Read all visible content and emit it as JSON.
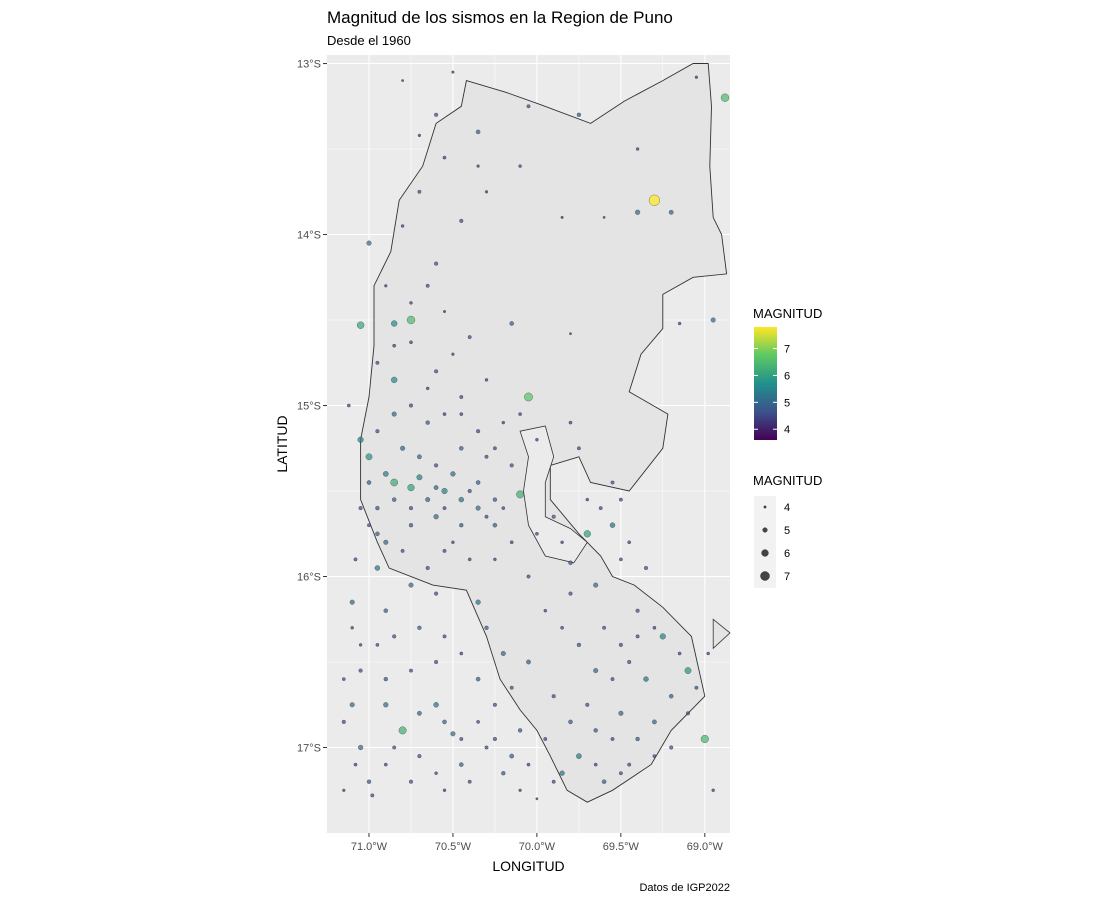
{
  "chart_data": {
    "type": "scatter",
    "title": "Magnitud de los sismos en la Region de Puno",
    "subtitle": "Desde el 1960",
    "xlabel": "LONGITUD",
    "ylabel": "LATITUD",
    "caption": "Datos de IGP2022",
    "xlim": [
      -71.25,
      -68.85
    ],
    "ylim": [
      -17.5,
      -12.95
    ],
    "x_ticks": [
      {
        "value": -71.0,
        "label": "71.0°W"
      },
      {
        "value": -70.5,
        "label": "70.5°W"
      },
      {
        "value": -70.0,
        "label": "70.0°W"
      },
      {
        "value": -69.5,
        "label": "69.5°W"
      },
      {
        "value": -69.0,
        "label": "69.0°W"
      }
    ],
    "y_ticks": [
      {
        "value": -13,
        "label": "13°S"
      },
      {
        "value": -14,
        "label": "14°S"
      },
      {
        "value": -15,
        "label": "15°S"
      },
      {
        "value": -16,
        "label": "16°S"
      },
      {
        "value": -17,
        "label": "17°S"
      }
    ],
    "grid": true,
    "legend_position": "right",
    "legends": [
      {
        "title": "MAGNITUD",
        "kind": "colorbar",
        "min": 3.6,
        "max": 7.8,
        "ticks": [
          "4",
          "5",
          "6",
          "7"
        ],
        "tick_values": [
          4,
          5,
          6,
          7
        ]
      },
      {
        "title": "MAGNITUD",
        "kind": "size",
        "entries": [
          "4",
          "5",
          "6",
          "7"
        ],
        "entry_values": [
          4,
          5,
          6,
          7
        ]
      }
    ],
    "colors": {
      "panel": "#ebebeb",
      "grid": "#ffffff",
      "region_fill": "#e4e4e4",
      "region_stroke": "#333333",
      "viridis": [
        "#440154",
        "#3b528b",
        "#21908c",
        "#5dc863",
        "#fde725"
      ]
    },
    "region_outline": [
      [
        -70.42,
        -13.1
      ],
      [
        -70.18,
        -13.17
      ],
      [
        -69.98,
        -13.24
      ],
      [
        -69.68,
        -13.35
      ],
      [
        -69.48,
        -13.22
      ],
      [
        -69.25,
        -13.1
      ],
      [
        -69.07,
        -13.0
      ],
      [
        -68.98,
        -13.0
      ],
      [
        -68.96,
        -13.25
      ],
      [
        -68.97,
        -13.6
      ],
      [
        -68.95,
        -13.9
      ],
      [
        -68.9,
        -14.0
      ],
      [
        -68.87,
        -14.23
      ],
      [
        -69.07,
        -14.25
      ],
      [
        -69.25,
        -14.35
      ],
      [
        -69.25,
        -14.55
      ],
      [
        -69.38,
        -14.7
      ],
      [
        -69.45,
        -14.92
      ],
      [
        -69.22,
        -15.05
      ],
      [
        -69.25,
        -15.25
      ],
      [
        -69.45,
        -15.5
      ],
      [
        -69.68,
        -15.45
      ],
      [
        -69.75,
        -15.3
      ],
      [
        -69.92,
        -15.35
      ],
      [
        -69.92,
        -15.55
      ],
      [
        -69.75,
        -15.75
      ],
      [
        -69.62,
        -15.88
      ],
      [
        -69.55,
        -16.0
      ],
      [
        -69.42,
        -16.05
      ],
      [
        -69.25,
        -16.18
      ],
      [
        -69.08,
        -16.35
      ],
      [
        -69.0,
        -16.7
      ],
      [
        -69.2,
        -16.9
      ],
      [
        -69.32,
        -17.1
      ],
      [
        -69.55,
        -17.25
      ],
      [
        -69.7,
        -17.32
      ],
      [
        -69.82,
        -17.25
      ],
      [
        -69.92,
        -17.05
      ],
      [
        -70.0,
        -16.9
      ],
      [
        -70.1,
        -16.78
      ],
      [
        -70.22,
        -16.6
      ],
      [
        -70.3,
        -16.35
      ],
      [
        -70.42,
        -16.08
      ],
      [
        -70.62,
        -16.05
      ],
      [
        -70.88,
        -15.95
      ],
      [
        -70.95,
        -15.8
      ],
      [
        -71.05,
        -15.55
      ],
      [
        -71.05,
        -15.2
      ],
      [
        -71.0,
        -14.95
      ],
      [
        -70.97,
        -14.65
      ],
      [
        -70.97,
        -14.3
      ],
      [
        -70.87,
        -14.1
      ],
      [
        -70.82,
        -13.8
      ],
      [
        -70.68,
        -13.6
      ],
      [
        -70.6,
        -13.35
      ],
      [
        -70.45,
        -13.25
      ],
      [
        -70.42,
        -13.1
      ]
    ],
    "lake_inlet": [
      [
        -70.1,
        -15.15
      ],
      [
        -69.95,
        -15.12
      ],
      [
        -69.9,
        -15.3
      ],
      [
        -69.95,
        -15.45
      ],
      [
        -69.95,
        -15.65
      ],
      [
        -69.8,
        -15.72
      ],
      [
        -69.7,
        -15.8
      ],
      [
        -69.78,
        -15.92
      ],
      [
        -69.95,
        -15.88
      ],
      [
        -70.05,
        -15.7
      ],
      [
        -70.08,
        -15.5
      ],
      [
        -70.05,
        -15.3
      ],
      [
        -70.1,
        -15.15
      ]
    ],
    "triangle": [
      [
        -68.95,
        -16.25
      ],
      [
        -68.95,
        -16.42
      ],
      [
        -68.85,
        -16.33
      ],
      [
        -68.95,
        -16.25
      ]
    ],
    "points": [
      [
        -70.6,
        -13.3,
        4.6
      ],
      [
        -70.7,
        -13.42,
        4.2
      ],
      [
        -70.35,
        -13.4,
        4.8
      ],
      [
        -70.05,
        -13.25,
        4.5
      ],
      [
        -69.75,
        -13.3,
        4.7
      ],
      [
        -69.4,
        -13.5,
        4.3
      ],
      [
        -70.8,
        -13.1,
        4.0
      ],
      [
        -70.5,
        -13.05,
        4.1
      ],
      [
        -69.05,
        -13.08,
        4.2
      ],
      [
        -68.88,
        -13.2,
        6.5
      ],
      [
        -69.3,
        -13.8,
        7.8
      ],
      [
        -69.4,
        -13.87,
        5.1
      ],
      [
        -69.2,
        -13.87,
        4.9
      ],
      [
        -70.45,
        -13.92,
        4.6
      ],
      [
        -70.3,
        -13.75,
        4.2
      ],
      [
        -69.85,
        -13.9,
        4.1
      ],
      [
        -69.6,
        -13.9,
        4.0
      ],
      [
        -70.1,
        -13.6,
        4.3
      ],
      [
        -71.0,
        -14.05,
        5.0
      ],
      [
        -70.6,
        -14.17,
        4.6
      ],
      [
        -70.75,
        -14.5,
        6.5
      ],
      [
        -70.85,
        -14.52,
        5.6
      ],
      [
        -70.65,
        -14.3,
        4.5
      ],
      [
        -71.05,
        -14.53,
        6.1
      ],
      [
        -70.4,
        -14.6,
        4.5
      ],
      [
        -70.15,
        -14.52,
        4.8
      ],
      [
        -69.8,
        -14.58,
        4.0
      ],
      [
        -69.15,
        -14.52,
        4.3
      ],
      [
        -68.95,
        -14.5,
        5.0
      ],
      [
        -70.05,
        -14.95,
        6.7
      ],
      [
        -70.3,
        -14.85,
        4.3
      ],
      [
        -70.6,
        -14.8,
        4.6
      ],
      [
        -70.85,
        -14.85,
        5.6
      ],
      [
        -70.75,
        -14.63,
        4.4
      ],
      [
        -70.5,
        -14.7,
        4.2
      ],
      [
        -71.05,
        -15.2,
        5.5
      ],
      [
        -71.0,
        -15.3,
        5.8
      ],
      [
        -70.95,
        -15.15,
        4.6
      ],
      [
        -70.85,
        -15.45,
        6.2
      ],
      [
        -70.75,
        -15.48,
        6.0
      ],
      [
        -70.55,
        -15.5,
        5.5
      ],
      [
        -70.45,
        -15.55,
        5.2
      ],
      [
        -70.35,
        -15.6,
        5.0
      ],
      [
        -70.25,
        -15.7,
        4.8
      ],
      [
        -70.1,
        -15.52,
        6.3
      ],
      [
        -70.6,
        -15.65,
        5.1
      ],
      [
        -70.75,
        -15.7,
        4.7
      ],
      [
        -70.9,
        -15.8,
        5.0
      ],
      [
        -70.95,
        -15.95,
        5.2
      ],
      [
        -70.3,
        -15.3,
        4.5
      ],
      [
        -70.45,
        -15.25,
        4.8
      ],
      [
        -70.65,
        -15.1,
        4.7
      ],
      [
        -70.85,
        -15.05,
        5.0
      ],
      [
        -71.05,
        -15.6,
        4.6
      ],
      [
        -70.55,
        -15.85,
        4.5
      ],
      [
        -70.25,
        -15.9,
        4.3
      ],
      [
        -69.7,
        -15.75,
        6.0
      ],
      [
        -69.55,
        -15.7,
        5.2
      ],
      [
        -69.5,
        -15.55,
        4.5
      ],
      [
        -69.8,
        -15.92,
        4.8
      ],
      [
        -69.65,
        -16.05,
        5.0
      ],
      [
        -69.4,
        -16.2,
        4.6
      ],
      [
        -69.25,
        -16.35,
        5.5
      ],
      [
        -69.1,
        -16.55,
        5.8
      ],
      [
        -69.0,
        -16.95,
        6.4
      ],
      [
        -69.3,
        -16.85,
        4.9
      ],
      [
        -69.5,
        -16.8,
        5.0
      ],
      [
        -69.65,
        -16.9,
        4.7
      ],
      [
        -69.75,
        -17.05,
        5.3
      ],
      [
        -69.85,
        -17.15,
        5.1
      ],
      [
        -69.6,
        -17.2,
        4.8
      ],
      [
        -69.45,
        -17.1,
        4.5
      ],
      [
        -69.9,
        -16.7,
        4.6
      ],
      [
        -70.05,
        -16.5,
        4.9
      ],
      [
        -70.2,
        -16.45,
        5.0
      ],
      [
        -70.3,
        -16.3,
        4.7
      ],
      [
        -70.35,
        -16.15,
        5.1
      ],
      [
        -70.6,
        -16.1,
        4.6
      ],
      [
        -70.75,
        -16.05,
        5.0
      ],
      [
        -70.9,
        -16.2,
        4.8
      ],
      [
        -71.1,
        -16.15,
        5.0
      ],
      [
        -71.15,
        -16.6,
        4.4
      ],
      [
        -71.05,
        -16.55,
        4.6
      ],
      [
        -71.1,
        -16.75,
        5.0
      ],
      [
        -70.9,
        -16.75,
        5.1
      ],
      [
        -70.8,
        -16.9,
        6.3
      ],
      [
        -70.7,
        -16.8,
        4.9
      ],
      [
        -70.6,
        -16.75,
        5.2
      ],
      [
        -70.55,
        -16.85,
        4.8
      ],
      [
        -70.5,
        -16.92,
        5.0
      ],
      [
        -70.45,
        -16.95,
        4.5
      ],
      [
        -71.05,
        -17.0,
        5.1
      ],
      [
        -71.0,
        -17.2,
        4.7
      ],
      [
        -70.9,
        -17.1,
        4.4
      ],
      [
        -70.75,
        -17.2,
        4.6
      ],
      [
        -70.6,
        -17.15,
        4.3
      ],
      [
        -70.45,
        -17.1,
        4.8
      ],
      [
        -70.3,
        -17.0,
        4.5
      ],
      [
        -70.2,
        -17.15,
        4.7
      ],
      [
        -70.1,
        -17.25,
        4.2
      ],
      [
        -70.0,
        -17.3,
        4.0
      ],
      [
        -69.9,
        -17.2,
        4.5
      ],
      [
        -70.15,
        -17.05,
        4.9
      ],
      [
        -70.05,
        -17.1,
        4.4
      ],
      [
        -70.25,
        -16.95,
        4.6
      ],
      [
        -71.15,
        -17.25,
        4.2
      ],
      [
        -70.98,
        -17.28,
        4.5
      ],
      [
        -69.75,
        -16.4,
        4.7
      ],
      [
        -69.65,
        -16.55,
        5.0
      ],
      [
        -69.55,
        -16.6,
        4.5
      ],
      [
        -69.45,
        -16.5,
        4.6
      ],
      [
        -69.35,
        -16.6,
        5.2
      ],
      [
        -69.2,
        -16.7,
        4.8
      ],
      [
        -69.85,
        -16.3,
        4.4
      ],
      [
        -69.95,
        -16.2,
        4.3
      ],
      [
        -69.8,
        -16.1,
        4.6
      ],
      [
        -70.05,
        -16.0,
        4.5
      ],
      [
        -70.15,
        -15.8,
        4.4
      ],
      [
        -70.25,
        -15.55,
        4.7
      ],
      [
        -70.35,
        -15.45,
        4.8
      ],
      [
        -70.5,
        -15.4,
        5.1
      ],
      [
        -70.6,
        -15.35,
        4.6
      ],
      [
        -70.7,
        -15.3,
        4.9
      ],
      [
        -70.8,
        -15.25,
        5.0
      ],
      [
        -70.9,
        -15.4,
        5.3
      ],
      [
        -71.0,
        -15.45,
        4.8
      ],
      [
        -70.55,
        -15.6,
        4.5
      ],
      [
        -70.45,
        -15.7,
        4.7
      ],
      [
        -70.65,
        -15.55,
        5.0
      ],
      [
        -70.75,
        -15.6,
        4.6
      ],
      [
        -70.85,
        -15.55,
        4.8
      ],
      [
        -70.4,
        -15.5,
        4.6
      ],
      [
        -70.3,
        -15.65,
        4.5
      ],
      [
        -70.2,
        -15.6,
        4.4
      ],
      [
        -70.7,
        -15.42,
        5.4
      ],
      [
        -70.6,
        -15.48,
        4.9
      ],
      [
        -70.95,
        -15.6,
        4.7
      ],
      [
        -71.0,
        -15.7,
        4.5
      ],
      [
        -70.95,
        -15.75,
        4.8
      ],
      [
        -70.5,
        -15.8,
        4.3
      ],
      [
        -70.4,
        -15.9,
        4.4
      ],
      [
        -70.65,
        -15.95,
        4.6
      ],
      [
        -70.8,
        -15.85,
        4.5
      ],
      [
        -70.9,
        -14.3,
        4.2
      ],
      [
        -70.75,
        -14.4,
        4.3
      ],
      [
        -70.55,
        -14.45,
        4.1
      ],
      [
        -70.85,
        -14.65,
        4.4
      ],
      [
        -70.95,
        -14.75,
        4.5
      ],
      [
        -70.65,
        -14.9,
        4.3
      ],
      [
        -70.45,
        -14.95,
        4.5
      ],
      [
        -70.55,
        -15.05,
        4.4
      ],
      [
        -70.75,
        -15.0,
        4.6
      ],
      [
        -70.95,
        -16.4,
        4.4
      ],
      [
        -70.85,
        -16.35,
        4.6
      ],
      [
        -70.7,
        -16.3,
        4.7
      ],
      [
        -70.55,
        -16.35,
        4.5
      ],
      [
        -70.45,
        -16.45,
        4.4
      ],
      [
        -70.6,
        -16.5,
        4.6
      ],
      [
        -70.75,
        -16.55,
        4.5
      ],
      [
        -70.9,
        -16.6,
        4.7
      ],
      [
        -71.05,
        -16.4,
        4.3
      ],
      [
        -70.35,
        -16.6,
        4.8
      ],
      [
        -70.25,
        -16.75,
        4.6
      ],
      [
        -70.15,
        -16.65,
        4.5
      ],
      [
        -70.1,
        -16.9,
        4.7
      ],
      [
        -70.35,
        -16.85,
        4.4
      ],
      [
        -70.4,
        -17.2,
        4.5
      ],
      [
        -70.55,
        -17.25,
        4.3
      ],
      [
        -70.7,
        -17.05,
        4.6
      ],
      [
        -70.85,
        -17.0,
        4.5
      ],
      [
        -69.95,
        -16.95,
        4.5
      ],
      [
        -69.8,
        -16.85,
        4.8
      ],
      [
        -69.7,
        -16.75,
        4.6
      ],
      [
        -69.55,
        -16.95,
        4.5
      ],
      [
        -69.4,
        -16.95,
        4.7
      ],
      [
        -69.3,
        -17.05,
        4.4
      ],
      [
        -69.2,
        -17.0,
        4.6
      ],
      [
        -69.5,
        -17.15,
        4.5
      ],
      [
        -69.65,
        -17.1,
        4.4
      ],
      [
        -68.98,
        -16.45,
        4.3
      ],
      [
        -69.05,
        -16.65,
        4.5
      ],
      [
        -69.15,
        -16.45,
        4.4
      ],
      [
        -69.1,
        -16.8,
        4.6
      ],
      [
        -68.95,
        -17.25,
        4.3
      ],
      [
        -69.4,
        -16.35,
        4.5
      ],
      [
        -69.3,
        -16.3,
        4.4
      ],
      [
        -69.5,
        -16.4,
        4.6
      ],
      [
        -69.6,
        -16.3,
        4.5
      ],
      [
        -70.0,
        -15.75,
        4.4
      ],
      [
        -69.9,
        -15.65,
        4.6
      ],
      [
        -69.85,
        -15.8,
        4.3
      ],
      [
        -69.62,
        -15.6,
        4.5
      ],
      [
        -69.45,
        -15.8,
        4.4
      ],
      [
        -69.35,
        -15.95,
        4.6
      ],
      [
        -69.5,
        -15.9,
        4.4
      ],
      [
        -69.7,
        -15.55,
        4.3
      ],
      [
        -69.55,
        -15.45,
        4.5
      ],
      [
        -70.15,
        -15.35,
        4.6
      ],
      [
        -70.1,
        -15.05,
        4.4
      ],
      [
        -70.0,
        -15.2,
        4.3
      ],
      [
        -69.8,
        -15.1,
        4.4
      ],
      [
        -69.75,
        -15.25,
        4.5
      ],
      [
        -70.25,
        -15.25,
        4.5
      ],
      [
        -70.35,
        -15.15,
        4.6
      ],
      [
        -70.45,
        -15.05,
        4.4
      ],
      [
        -70.2,
        -15.1,
        4.3
      ],
      [
        -71.12,
        -15.0,
        4.4
      ],
      [
        -71.08,
        -15.9,
        4.5
      ],
      [
        -71.1,
        -16.3,
        4.3
      ],
      [
        -71.15,
        -16.85,
        4.6
      ],
      [
        -71.08,
        -17.1,
        4.4
      ],
      [
        -70.35,
        -13.6,
        4.2
      ],
      [
        -70.55,
        -13.55,
        4.4
      ],
      [
        -70.7,
        -13.75,
        4.5
      ],
      [
        -70.8,
        -13.95,
        4.3
      ]
    ]
  }
}
